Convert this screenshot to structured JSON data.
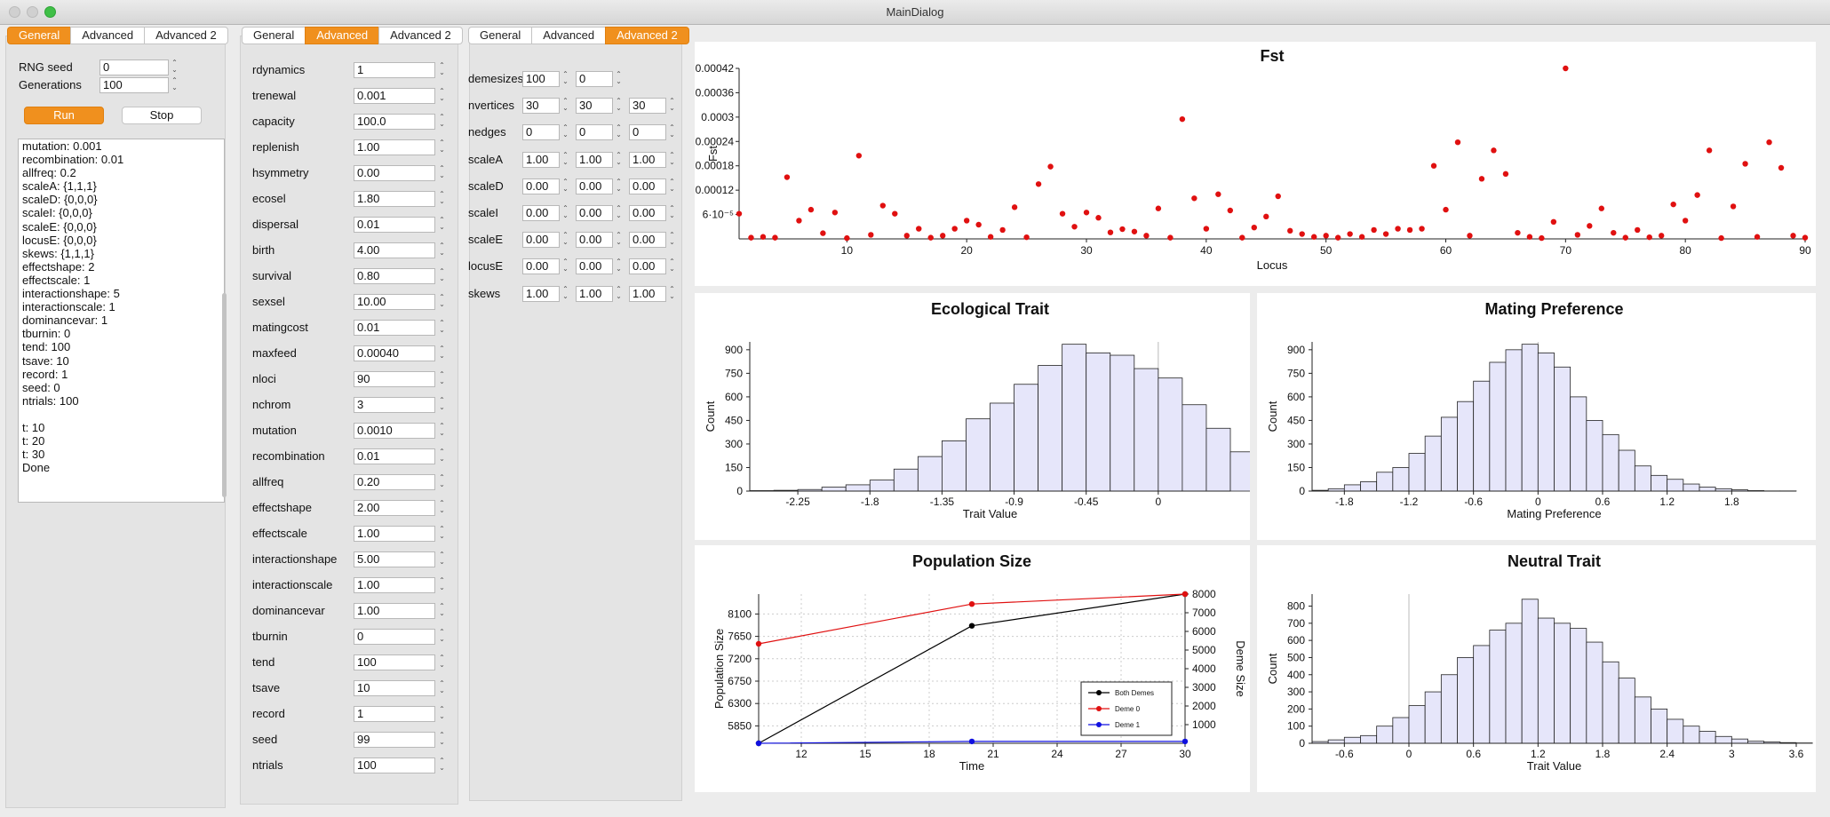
{
  "window": {
    "title": "MainDialog"
  },
  "panel1": {
    "tabs": [
      "General",
      "Advanced",
      "Advanced 2"
    ],
    "active_tab": 0,
    "rng_seed_label": "RNG seed",
    "rng_seed_value": "0",
    "generations_label": "Generations",
    "generations_value": "100",
    "run_label": "Run",
    "stop_label": "Stop",
    "log_lines": [
      "mutation: 0.001",
      "recombination: 0.01",
      "allfreq: 0.2",
      "scaleA: {1,1,1}",
      "scaleD: {0,0,0}",
      "scaleI: {0,0,0}",
      "scaleE: {0,0,0}",
      "locusE: {0,0,0}",
      "skews: {1,1,1}",
      "effectshape: 2",
      "effectscale: 1",
      "interactionshape: 5",
      "interactionscale: 1",
      "dominancevar: 1",
      "tburnin: 0",
      "tend: 100",
      "tsave: 10",
      "record: 1",
      "seed: 0",
      "ntrials: 100",
      "",
      "t: 10",
      "t: 20",
      "t: 30",
      "Done"
    ]
  },
  "panel2": {
    "tabs": [
      "General",
      "Advanced",
      "Advanced 2"
    ],
    "active_tab": 1,
    "params": [
      {
        "label": "rdynamics",
        "value": "1"
      },
      {
        "label": "trenewal",
        "value": "0.001"
      },
      {
        "label": "capacity",
        "value": "100.0"
      },
      {
        "label": "replenish",
        "value": "1.00"
      },
      {
        "label": "hsymmetry",
        "value": "0.00"
      },
      {
        "label": "ecosel",
        "value": "1.80"
      },
      {
        "label": "dispersal",
        "value": "0.01"
      },
      {
        "label": "birth",
        "value": "4.00"
      },
      {
        "label": "survival",
        "value": "0.80"
      },
      {
        "label": "sexsel",
        "value": "10.00"
      },
      {
        "label": "matingcost",
        "value": "0.01"
      },
      {
        "label": "maxfeed",
        "value": "0.00040"
      },
      {
        "label": "nloci",
        "value": "90"
      },
      {
        "label": "nchrom",
        "value": "3"
      },
      {
        "label": "mutation",
        "value": "0.0010"
      },
      {
        "label": "recombination",
        "value": "0.01"
      },
      {
        "label": "allfreq",
        "value": "0.20"
      },
      {
        "label": "effectshape",
        "value": "2.00"
      },
      {
        "label": "effectscale",
        "value": "1.00"
      },
      {
        "label": "interactionshape",
        "value": "5.00"
      },
      {
        "label": "interactionscale",
        "value": "1.00"
      },
      {
        "label": "dominancevar",
        "value": "1.00"
      },
      {
        "label": "tburnin",
        "value": "0"
      },
      {
        "label": "tend",
        "value": "100"
      },
      {
        "label": "tsave",
        "value": "10"
      },
      {
        "label": "record",
        "value": "1"
      },
      {
        "label": "seed",
        "value": "99"
      },
      {
        "label": "ntrials",
        "value": "100"
      }
    ]
  },
  "panel3": {
    "tabs": [
      "General",
      "Advanced",
      "Advanced 2"
    ],
    "active_tab": 2,
    "rows": [
      {
        "label": "demesizes",
        "values": [
          "100",
          "0"
        ]
      },
      {
        "label": "nvertices",
        "values": [
          "30",
          "30",
          "30"
        ]
      },
      {
        "label": "nedges",
        "values": [
          "0",
          "0",
          "0"
        ]
      },
      {
        "label": "scaleA",
        "values": [
          "1.00",
          "1.00",
          "1.00"
        ]
      },
      {
        "label": "scaleD",
        "values": [
          "0.00",
          "0.00",
          "0.00"
        ]
      },
      {
        "label": "scaleI",
        "values": [
          "0.00",
          "0.00",
          "0.00"
        ]
      },
      {
        "label": "scaleE",
        "values": [
          "0.00",
          "0.00",
          "0.00"
        ]
      },
      {
        "label": "locusE",
        "values": [
          "0.00",
          "0.00",
          "0.00"
        ]
      },
      {
        "label": "skews",
        "values": [
          "1.00",
          "1.00",
          "1.00"
        ]
      }
    ]
  },
  "charts": {
    "fst": {
      "title": "Fst",
      "xlabel": "Locus",
      "ylabel": "Fst"
    },
    "eco": {
      "title": "Ecological Trait",
      "xlabel": "Trait Value",
      "ylabel": "Count"
    },
    "mate": {
      "title": "Mating Preference",
      "xlabel": "Mating Preference",
      "ylabel": "Count"
    },
    "pop": {
      "title": "Population Size",
      "xlabel": "Time",
      "ylabel": "Population Size",
      "y2label": "Deme Size"
    },
    "neutral": {
      "title": "Neutral Trait",
      "xlabel": "Trait Value",
      "ylabel": "Count"
    }
  },
  "chart_data": [
    {
      "type": "scatter",
      "title": "Fst",
      "xlabel": "Locus",
      "ylabel": "Fst",
      "xlim": [
        1,
        90
      ],
      "ylim": [
        0,
        0.00042
      ],
      "xticks": [
        "10",
        "20",
        "30",
        "40",
        "50",
        "60",
        "70",
        "80",
        "90"
      ],
      "yticks": [
        "6·10⁻⁵",
        "0.00012",
        "0.00018",
        "0.00024",
        "0.0003",
        "0.00036",
        "0.00042"
      ],
      "color": "#e01010",
      "x": [
        1,
        2,
        3,
        4,
        5,
        6,
        7,
        8,
        9,
        10,
        11,
        12,
        13,
        14,
        15,
        16,
        17,
        18,
        19,
        20,
        21,
        22,
        23,
        24,
        25,
        26,
        27,
        28,
        29,
        30,
        31,
        32,
        33,
        34,
        35,
        36,
        37,
        38,
        39,
        40,
        41,
        42,
        43,
        44,
        45,
        46,
        47,
        48,
        49,
        50,
        51,
        52,
        53,
        54,
        55,
        56,
        57,
        58,
        59,
        60,
        61,
        62,
        63,
        64,
        65,
        66,
        67,
        68,
        69,
        70,
        71,
        72,
        73,
        74,
        75,
        76,
        77,
        78,
        79,
        80,
        81,
        82,
        83,
        84,
        85,
        86,
        87,
        88,
        89,
        90
      ],
      "y": [
        6.2e-05,
        3e-06,
        5e-06,
        3e-06,
        0.000152,
        4.5e-05,
        7.2e-05,
        1.4e-05,
        6.5e-05,
        2e-06,
        0.000205,
        1e-05,
        8.2e-05,
        6.2e-05,
        8e-06,
        2.5e-05,
        3e-06,
        8e-06,
        2.5e-05,
        4.5e-05,
        3.5e-05,
        5e-06,
        2.2e-05,
        7.8e-05,
        4e-06,
        0.000135,
        0.000178,
        6.2e-05,
        3e-05,
        6.5e-05,
        5.2e-05,
        1.6e-05,
        2.4e-05,
        1.8e-05,
        8e-06,
        7.5e-05,
        3e-06,
        0.000295,
        0.0001,
        2.5e-05,
        0.00011,
        7e-05,
        3e-06,
        2.8e-05,
        5.5e-05,
        0.000105,
        2e-05,
        1.2e-05,
        5e-06,
        8e-06,
        3e-06,
        1.2e-05,
        5e-06,
        2.2e-05,
        1.2e-05,
        2.5e-05,
        2.2e-05,
        2.5e-05,
        0.00018,
        7.2e-05,
        0.000238,
        8e-06,
        0.000148,
        0.000218,
        0.00016,
        1.5e-05,
        5e-06,
        2e-06,
        4.2e-05,
        0.00042,
        1e-05,
        3.2e-05,
        7.5e-05,
        1.5e-05,
        3e-06,
        2.2e-05,
        4e-06,
        8e-06,
        8.5e-05,
        4.5e-05,
        0.000108,
        0.000218,
        2e-06,
        8e-05,
        0.000185,
        5e-06,
        0.000238,
        0.000175,
        8e-06,
        3e-06
      ]
    },
    {
      "type": "bar",
      "title": "Ecological Trait",
      "xlabel": "Trait Value",
      "ylabel": "Count",
      "xlim": [
        -2.55,
        0.45
      ],
      "ylim": [
        0,
        950
      ],
      "xticks": [
        -2.25,
        -1.8,
        -1.35,
        -0.9,
        -0.45,
        0
      ],
      "xtick_labels": [
        "-2.25",
        "-1.8",
        "-1.35",
        "-0.9",
        "-0.45",
        "0"
      ],
      "yticks": [
        0,
        150,
        300,
        450,
        600,
        750,
        900
      ],
      "bin_start": -2.55,
      "bin_width": 0.15,
      "values": [
        3,
        5,
        10,
        25,
        40,
        70,
        140,
        220,
        320,
        460,
        560,
        680,
        800,
        935,
        880,
        865,
        780,
        720,
        550,
        400,
        250,
        150,
        110,
        70,
        40,
        20,
        10,
        5,
        3,
        2
      ],
      "fill": "#e6e6fa"
    },
    {
      "type": "bar",
      "title": "Mating Preference",
      "xlabel": "Mating Preference",
      "ylabel": "Count",
      "xlim": [
        -2.1,
        2.4
      ],
      "ylim": [
        0,
        950
      ],
      "xticks": [
        -1.8,
        -1.2,
        -0.6,
        0,
        0.6,
        1.2,
        1.8
      ],
      "xtick_labels": [
        "-1.8",
        "-1.2",
        "-0.6",
        "0",
        "0.6",
        "1.2",
        "1.8"
      ],
      "yticks": [
        0,
        150,
        300,
        450,
        600,
        750,
        900
      ],
      "bin_start": -2.1,
      "bin_width": 0.15,
      "values": [
        5,
        15,
        40,
        60,
        120,
        150,
        240,
        350,
        470,
        570,
        700,
        820,
        900,
        935,
        880,
        790,
        600,
        450,
        360,
        260,
        160,
        100,
        75,
        45,
        25,
        15,
        8,
        3,
        1,
        1
      ],
      "fill": "#e6e6fa"
    },
    {
      "type": "line",
      "title": "Population Size",
      "xlabel": "Time",
      "ylabel": "Population Size",
      "y2label": "Deme Size",
      "xlim": [
        10,
        30
      ],
      "ylim": [
        5500,
        8500
      ],
      "y2lim": [
        0,
        8000
      ],
      "xticks": [
        12,
        15,
        18,
        21,
        24,
        27,
        30
      ],
      "yticks": [
        5850,
        6300,
        6750,
        7200,
        7650,
        8100
      ],
      "y2ticks": [
        1000,
        2000,
        3000,
        4000,
        5000,
        6000,
        7000,
        8000
      ],
      "x": [
        10,
        20,
        30
      ],
      "series": [
        {
          "name": "Both Demes",
          "axis": "y2",
          "color": "#000000",
          "values": [
            0,
            6300,
            8000
          ]
        },
        {
          "name": "Deme 0",
          "axis": "y",
          "color": "#e01010",
          "values": [
            7500,
            8300,
            8500
          ]
        },
        {
          "name": "Deme 1",
          "axis": "y2",
          "color": "#1010e0",
          "values": [
            0,
            100,
            100
          ]
        }
      ],
      "legend": "bottom-right"
    },
    {
      "type": "bar",
      "title": "Neutral Trait",
      "xlabel": "Trait Value",
      "ylabel": "Count",
      "xlim": [
        -0.9,
        3.6
      ],
      "ylim": [
        0,
        870
      ],
      "xticks": [
        -0.6,
        0,
        0.6,
        1.2,
        1.8,
        2.4,
        3,
        3.6
      ],
      "xtick_labels": [
        "-0.6",
        "0",
        "0.6",
        "1.2",
        "1.8",
        "2.4",
        "3",
        "3.6"
      ],
      "yticks": [
        0,
        100,
        200,
        300,
        400,
        500,
        600,
        700,
        800
      ],
      "bin_start": -0.9,
      "bin_width": 0.15,
      "values": [
        10,
        20,
        35,
        45,
        100,
        150,
        220,
        300,
        400,
        500,
        570,
        660,
        700,
        840,
        730,
        700,
        670,
        590,
        475,
        380,
        270,
        200,
        140,
        100,
        70,
        40,
        25,
        12,
        8,
        4,
        2
      ],
      "fill": "#e6e6fa"
    }
  ]
}
